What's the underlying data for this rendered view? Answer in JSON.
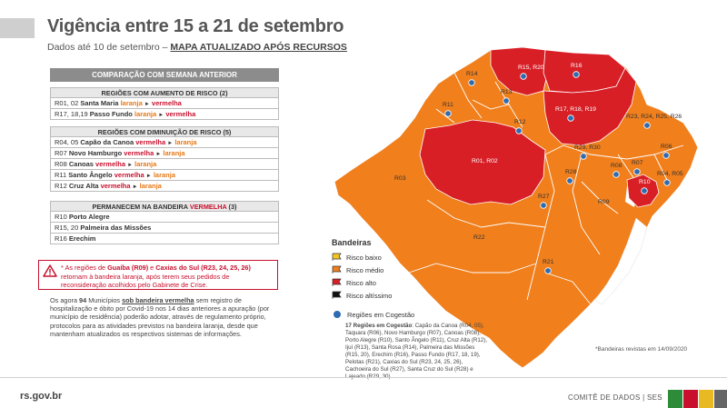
{
  "header": {
    "title": "Vigência entre 15 a 21 de setembro",
    "subtitle_prefix": "Dados até 10 de setembro – ",
    "subtitle_highlight": "MAPA ATUALIZADO APÓS RECURSOS"
  },
  "comparison": {
    "title": "COMPARAÇÃO COM SEMANA ANTERIOR",
    "increase": {
      "title": "REGIÕES COM AUMENTO DE RISCO (2)",
      "rows": [
        {
          "codes": "R01, 02",
          "name": "Santa Maria",
          "from": "laranja",
          "to": "vermelha"
        },
        {
          "codes": "R17, 18,19",
          "name": "Passo Fundo",
          "from": "laranja",
          "to": "vermelha"
        }
      ]
    },
    "decrease": {
      "title": "REGIÕES COM DIMINUIÇÃO DE RISCO (5)",
      "rows": [
        {
          "codes": "R04, 05",
          "name": "Capão da Canoa",
          "from": "vermelha",
          "to": "laranja"
        },
        {
          "codes": "R07",
          "name": "Novo Hamburgo",
          "from": "vermelha",
          "to": "laranja"
        },
        {
          "codes": "R08",
          "name": "Canoas",
          "from": "vermelha",
          "to": "laranja"
        },
        {
          "codes": "R11",
          "name": "Santo Ângelo",
          "from": "vermelha",
          "to": "laranja"
        },
        {
          "codes": "R12",
          "name": "Cruz Alta",
          "from": "vermelha",
          "to": "laranja"
        }
      ]
    },
    "remain": {
      "title_prefix": "PERMANECEM NA BANDEIRA ",
      "title_highlight": "VERMELHA",
      "title_suffix": " (3)",
      "rows": [
        {
          "codes": "R10",
          "name": "Porto Alegre"
        },
        {
          "codes": "R15, 20",
          "name": "Palmeira das Missões"
        },
        {
          "codes": "R16",
          "name": "Erechim"
        }
      ]
    },
    "arrow": "►"
  },
  "notice": {
    "p1": "* As regiões de ",
    "r1": "Guaíba (R09)",
    "p2": " e ",
    "r2": "Caxias do Sul (R23, 24, 25, 26)",
    "p3": " retornam à bandeira laranja, após terem seus pedidos de reconsideração acolhidos pelo Gabinete de Crise."
  },
  "paragraph": {
    "p1": "Os agora ",
    "count": "94",
    "p2": " Municípios ",
    "link": "sob bandeira vermelha",
    "p3": " sem registro de hospitalização e óbito por Covid-19 nos 14 dias anteriores a apuração (por município de residência) poderão adotar, através de regulamento próprio, protocolos para as atividades previstos na bandeira laranja, desde que mantenham atualizados os respectivos sistemas de informações."
  },
  "legend": {
    "title": "Bandeiras",
    "items": [
      {
        "label": "Risco baixo",
        "color": "#f3c623"
      },
      {
        "label": "Risco médio",
        "color": "#f07f1c"
      },
      {
        "label": "Risco alto",
        "color": "#d81f26"
      },
      {
        "label": "Risco altíssimo",
        "color": "#111111"
      }
    ],
    "cogestao_label": "Regiões em Cogestão",
    "cogestao_title": "17 Regiões em Cogestão",
    "cogestao_text": ": Capão da Canoa (R04, 05), Taquara (R06), Novo Hamburgo (R07), Canoas (R08), Porto Alegre (R10), Santo Ângelo (R11), Cruz Alta (R12), Ijuí (R13), Santa Rosa (R14), Palmeira das Missões (R15, 20), Erechim (R16), Passo Fundo (R17, 18, 19), Pelotas (R21), Caxias do Sul (R23, 24, 25, 26), Cachoeira do Sul (R27), Santa Cruz do Sul (R28) e Lajeado (R29, 30)."
  },
  "map_labels": {
    "r03": "R03",
    "r14": "R14",
    "r15": "R15, R20",
    "r16": "R16",
    "r11": "R11",
    "r13": "R13",
    "r12": "R12",
    "r17": "R17, R18, R19",
    "r01": "R01, R02",
    "r23": "R23, R24, R25, R26",
    "r29": "R29, R30",
    "r06": "R06",
    "r28": "R28",
    "r08": "R08",
    "r07": "R07",
    "r04": "R04, R05",
    "r10": "R10",
    "r27": "R27",
    "r09": "R09",
    "r22": "R22",
    "r21": "R21"
  },
  "revistas": "*Bandeiras revistas em 14/09/2020",
  "footer": {
    "site": "rs.gov.br",
    "comite": "COMITÊ DE DADOS | SES",
    "flag_colors": [
      "#2e8b3a",
      "#c8102e",
      "#e8b923",
      "#666666"
    ]
  }
}
